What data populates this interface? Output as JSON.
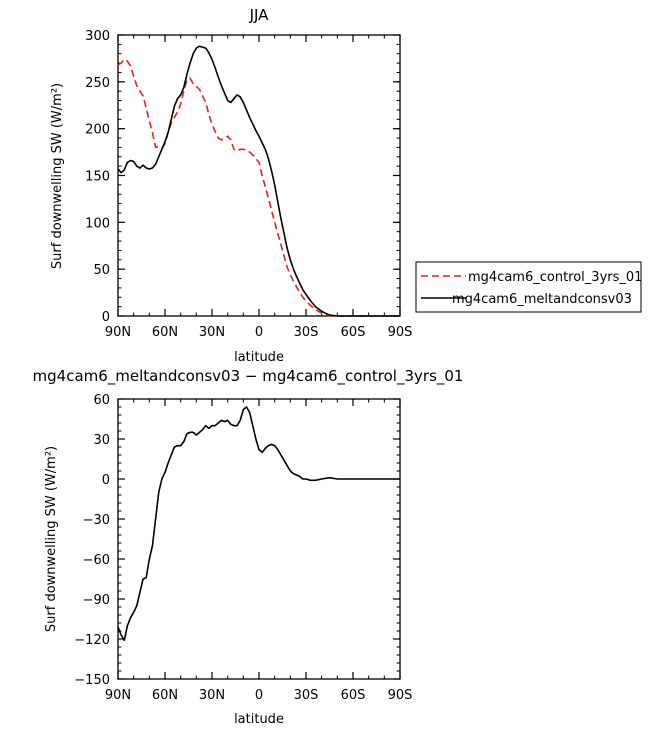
{
  "chart_data": [
    {
      "type": "line",
      "title": "JJA",
      "xlabel": "latitude",
      "ylabel": "Surf downwelling SW (W/m²)",
      "xlim": [
        90,
        -90
      ],
      "ylim": [
        0,
        300
      ],
      "x_ticks": [
        90,
        60,
        30,
        0,
        -30,
        -60,
        -90
      ],
      "x_tick_labels": [
        "90N",
        "60N",
        "30N",
        "0",
        "30S",
        "60S",
        "90S"
      ],
      "y_ticks": [
        0,
        50,
        100,
        150,
        200,
        250,
        300
      ],
      "y_tick_labels": [
        "0",
        "50",
        "100",
        "150",
        "200",
        "250",
        "300"
      ],
      "legend_position": "right",
      "series": [
        {
          "name": "mg4cam6_control_3yrs_01",
          "color": "#e8201c",
          "dash": "dashed",
          "x": [
            90,
            88,
            86,
            84,
            82,
            80,
            78,
            76,
            74,
            72,
            70,
            68,
            66,
            64,
            62,
            60,
            58,
            56,
            54,
            52,
            50,
            48,
            46,
            44,
            42,
            40,
            38,
            36,
            34,
            32,
            30,
            28,
            26,
            24,
            22,
            20,
            18,
            16,
            14,
            12,
            10,
            8,
            6,
            4,
            2,
            0,
            -2,
            -4,
            -6,
            -8,
            -10,
            -12,
            -14,
            -16,
            -18,
            -20,
            -22,
            -24,
            -26,
            -28,
            -30,
            -33,
            -36,
            -40,
            -45,
            -50,
            -55,
            -60,
            -65,
            -70,
            -75,
            -80,
            -85,
            -90
          ],
          "y": [
            268,
            270,
            274,
            272,
            267,
            256,
            246,
            240,
            235,
            222,
            208,
            196,
            180,
            181,
            179,
            184,
            196,
            206,
            212,
            218,
            226,
            240,
            252,
            254,
            248,
            245,
            242,
            235,
            228,
            215,
            205,
            197,
            190,
            188,
            189,
            192,
            188,
            178,
            176,
            178,
            178,
            177,
            175,
            172,
            168,
            164,
            150,
            138,
            126,
            113,
            100,
            88,
            76,
            64,
            52,
            44,
            37,
            31,
            25,
            20,
            16,
            11,
            7,
            3,
            0,
            0,
            0,
            0,
            0,
            0,
            0,
            0,
            0,
            0
          ]
        },
        {
          "name": "mg4cam6_meltandconsv03",
          "color": "#000000",
          "dash": "solid",
          "x": [
            90,
            88,
            86,
            84,
            82,
            80,
            78,
            76,
            74,
            72,
            70,
            68,
            66,
            64,
            62,
            60,
            58,
            56,
            54,
            52,
            50,
            48,
            46,
            44,
            42,
            40,
            38,
            36,
            34,
            32,
            30,
            28,
            26,
            24,
            22,
            20,
            18,
            16,
            14,
            12,
            10,
            8,
            6,
            4,
            2,
            0,
            -2,
            -4,
            -6,
            -8,
            -10,
            -12,
            -14,
            -16,
            -18,
            -20,
            -22,
            -24,
            -26,
            -28,
            -30,
            -33,
            -36,
            -40,
            -45,
            -50,
            -55,
            -60,
            -65,
            -70,
            -75,
            -80,
            -85,
            -90
          ],
          "y": [
            157,
            153,
            156,
            164,
            166,
            165,
            160,
            158,
            161,
            158,
            157,
            158,
            162,
            170,
            178,
            186,
            196,
            210,
            224,
            232,
            236,
            244,
            258,
            270,
            280,
            286,
            288,
            287,
            286,
            281,
            274,
            265,
            255,
            246,
            238,
            230,
            228,
            232,
            236,
            234,
            228,
            220,
            212,
            205,
            198,
            192,
            185,
            178,
            168,
            155,
            140,
            122,
            104,
            88,
            72,
            60,
            50,
            42,
            35,
            28,
            23,
            16,
            10,
            5,
            1,
            0,
            0,
            0,
            0,
            0,
            0,
            0,
            0,
            0
          ]
        }
      ]
    },
    {
      "type": "line",
      "title": "mg4cam6_meltandconsv03 − mg4cam6_control_3yrs_01",
      "xlabel": "latitude",
      "ylabel": "Surf downwelling SW (W/m²)",
      "xlim": [
        90,
        -90
      ],
      "ylim": [
        -150,
        60
      ],
      "x_ticks": [
        90,
        60,
        30,
        0,
        -30,
        -60,
        -90
      ],
      "x_tick_labels": [
        "90N",
        "60N",
        "30N",
        "0",
        "30S",
        "60S",
        "90S"
      ],
      "y_ticks": [
        -150,
        -120,
        -90,
        -60,
        -30,
        0,
        30,
        60
      ],
      "y_tick_labels": [
        "−150",
        "−120",
        "−90",
        "−60",
        "−30",
        "0",
        "30",
        "60"
      ],
      "series": [
        {
          "name": "",
          "color": "#000000",
          "dash": "solid",
          "x": [
            90,
            88,
            86,
            84,
            82,
            80,
            78,
            76,
            74,
            72,
            70,
            68,
            66,
            64,
            62,
            60,
            58,
            56,
            54,
            52,
            50,
            48,
            46,
            44,
            42,
            40,
            38,
            36,
            34,
            32,
            30,
            28,
            26,
            24,
            22,
            20,
            18,
            16,
            14,
            12,
            10,
            8,
            6,
            4,
            2,
            0,
            -2,
            -4,
            -6,
            -8,
            -10,
            -12,
            -14,
            -16,
            -18,
            -20,
            -22,
            -24,
            -26,
            -28,
            -30,
            -33,
            -36,
            -40,
            -45,
            -50,
            -55,
            -60,
            -65,
            -70,
            -75,
            -80,
            -85,
            -90
          ],
          "y": [
            -111,
            -117,
            -121,
            -110,
            -104,
            -100,
            -95,
            -85,
            -75,
            -74,
            -60,
            -50,
            -30,
            -10,
            0,
            5,
            12,
            18,
            24,
            25,
            25,
            28,
            34,
            35,
            35,
            33,
            35,
            37,
            40,
            38,
            40,
            40,
            42,
            44,
            43,
            44,
            41,
            40,
            40,
            44,
            52,
            54,
            50,
            40,
            30,
            22,
            20,
            23,
            25,
            26,
            25,
            22,
            18,
            14,
            10,
            6,
            4,
            3,
            2,
            0,
            0,
            -1,
            -1,
            0,
            1,
            0,
            0,
            0,
            0,
            0,
            0,
            0,
            0,
            0
          ]
        }
      ]
    }
  ]
}
